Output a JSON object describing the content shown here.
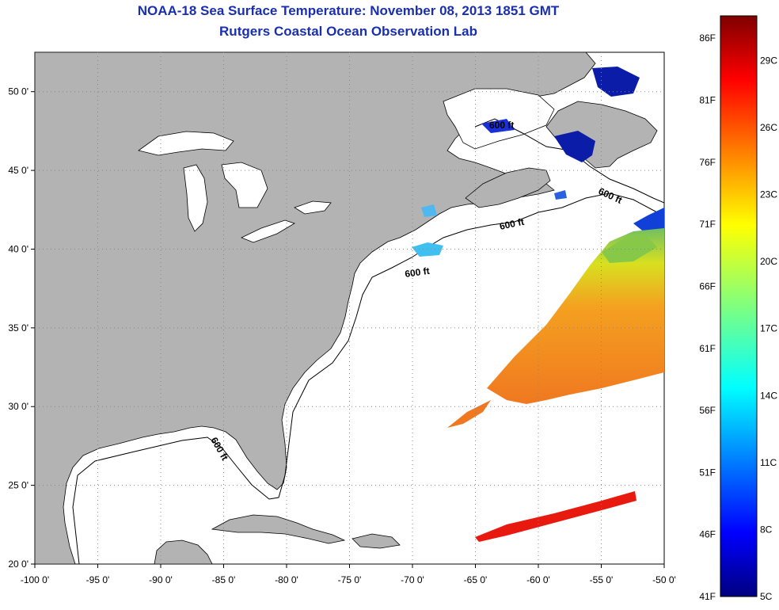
{
  "title_line1": "NOAA-18 Sea Surface Temperature:  November 08, 2013 1851 GMT",
  "title_line2": "Rutgers Coastal Ocean Observation Lab",
  "colors": {
    "title": "#1a2fb0",
    "land": "#b3b3b3",
    "ocean": "#ffffff",
    "grid": "#888888"
  },
  "map": {
    "lon_range": [
      -100,
      -50
    ],
    "lat_range": [
      20,
      52.5
    ],
    "lon_ticks": [
      "-100 0'",
      "-95 0'",
      "-90 0'",
      "-85 0'",
      "-80 0'",
      "-75 0'",
      "-70 0'",
      "-65 0'",
      "-60 0'",
      "-55 0'",
      "-50 0'"
    ],
    "lat_ticks": [
      "20 0'",
      "25 0'",
      "30 0'",
      "35 0'",
      "40 0'",
      "45 0'",
      "50 0'"
    ],
    "contour_labels": [
      "600 ft",
      "600 ft",
      "600 ft",
      "600 ft",
      "600 ft"
    ]
  },
  "colorbar": {
    "type": "jet",
    "range_c": [
      5,
      31
    ],
    "f_labels": [
      "86F",
      "81F",
      "76F",
      "71F",
      "66F",
      "61F",
      "56F",
      "51F",
      "46F",
      "41F"
    ],
    "c_labels": [
      "29C",
      "26C",
      "23C",
      "20C",
      "17C",
      "14C",
      "11C",
      "8C",
      "5C"
    ]
  }
}
